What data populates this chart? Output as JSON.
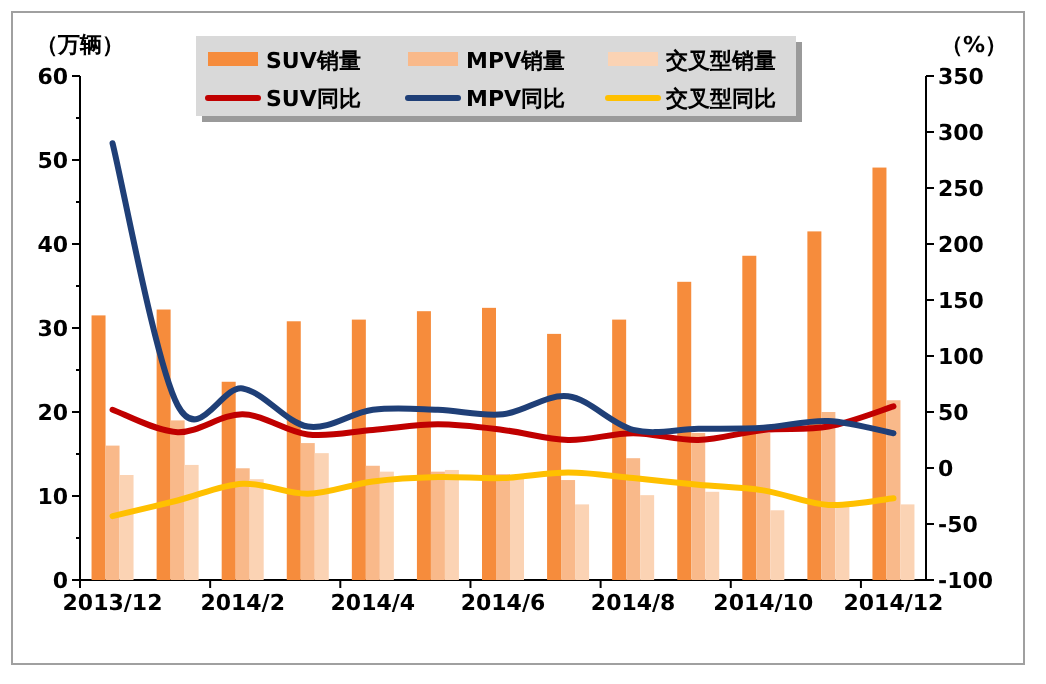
{
  "chart_data": {
    "type": "bar",
    "ylabel": "（万辆）",
    "y2label": "（%）",
    "categories": [
      "2013/12",
      null,
      "2014/2",
      null,
      "2014/4",
      null,
      "2014/6",
      null,
      "2014/8",
      null,
      "2014/10",
      null,
      "2014/12"
    ],
    "ylim": [
      0,
      60
    ],
    "yticks": [
      0,
      10,
      20,
      30,
      40,
      50,
      60
    ],
    "y2lim": [
      -100,
      350
    ],
    "y2ticks": [
      -100,
      -50,
      0,
      50,
      100,
      150,
      200,
      250,
      300,
      350
    ],
    "legend": "top",
    "grid": false,
    "series": [
      {
        "name": "SUV销量",
        "color": "#f68c3c",
        "values": [
          31.5,
          32.2,
          23.6,
          30.8,
          31.0,
          32.0,
          32.4,
          29.3,
          31.0,
          35.5,
          38.6,
          41.5,
          49.1
        ]
      },
      {
        "name": "MPV销量",
        "color": "#f9b98a",
        "values": [
          16.0,
          19.0,
          13.3,
          16.3,
          13.6,
          12.9,
          12.6,
          11.9,
          14.5,
          17.5,
          17.5,
          20.0,
          21.4
        ]
      },
      {
        "name": "交叉型销量",
        "color": "#fbd3b4",
        "values": [
          12.5,
          13.7,
          12.0,
          15.1,
          12.9,
          13.1,
          12.4,
          9.0,
          10.1,
          10.5,
          8.3,
          8.8,
          9.0
        ]
      },
      {
        "name": "SUV同比",
        "type": "line",
        "axis": "y2",
        "color": "#c00000",
        "values": [
          52,
          32,
          48,
          30,
          34,
          39,
          34,
          25,
          31,
          25,
          34,
          37,
          55
        ]
      },
      {
        "name": "MPV同比",
        "type": "line",
        "axis": "y2",
        "color": "#1f3f77",
        "values": [
          290,
          56,
          71,
          37,
          52,
          52,
          48,
          64,
          34,
          35,
          36,
          42,
          31
        ]
      },
      {
        "name": "交叉型同比",
        "type": "line",
        "axis": "y2",
        "color": "#ffc000",
        "values": [
          -43,
          -29,
          -14,
          -23,
          -12,
          -8,
          -9,
          -4,
          -9,
          -15,
          -20,
          -33,
          -27
        ]
      }
    ]
  }
}
